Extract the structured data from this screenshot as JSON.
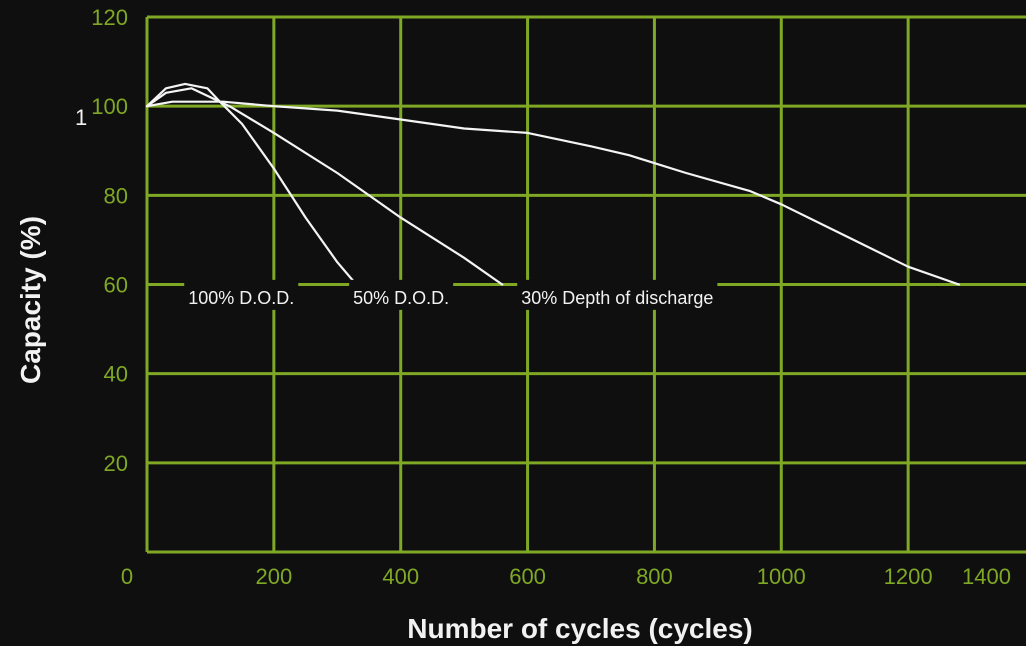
{
  "chart_data": {
    "type": "line",
    "title": "",
    "xlabel": "Number of cycles (cycles)",
    "ylabel": "Capacity (%)",
    "xlim": [
      0,
      1400
    ],
    "ylim": [
      0,
      120
    ],
    "x_ticks": [
      "0",
      "200",
      "400",
      "600",
      "800",
      "1000",
      "1200",
      "1400"
    ],
    "y_ticks": [
      "20",
      "40",
      "60",
      "80",
      "100",
      "120"
    ],
    "grid": true,
    "colors": {
      "background": "#0f0f0f",
      "grid": "#7fa824",
      "tick_labels": "#7fa824",
      "series": "#f4f4f4",
      "text": "#f2f2f2"
    },
    "stray_glyph": "1",
    "series": [
      {
        "label": "100% D.O.D.",
        "points": [
          [
            0,
            100
          ],
          [
            30,
            104
          ],
          [
            60,
            105
          ],
          [
            95,
            104
          ],
          [
            115,
            101
          ],
          [
            150,
            96
          ],
          [
            200,
            86
          ],
          [
            250,
            75
          ],
          [
            300,
            65
          ],
          [
            330,
            60
          ]
        ]
      },
      {
        "label": "50% D.O.D.",
        "points": [
          [
            0,
            100
          ],
          [
            30,
            103
          ],
          [
            70,
            104
          ],
          [
            100,
            102
          ],
          [
            130,
            100
          ],
          [
            200,
            94
          ],
          [
            300,
            85
          ],
          [
            400,
            75
          ],
          [
            500,
            66
          ],
          [
            560,
            60
          ]
        ]
      },
      {
        "label": "30% Depth of discharge",
        "points": [
          [
            0,
            100
          ],
          [
            40,
            101
          ],
          [
            80,
            101
          ],
          [
            120,
            101
          ],
          [
            200,
            100
          ],
          [
            300,
            99
          ],
          [
            400,
            97
          ],
          [
            500,
            95
          ],
          [
            600,
            94
          ],
          [
            700,
            91
          ],
          [
            760,
            89
          ],
          [
            850,
            85
          ],
          [
            950,
            81
          ],
          [
            1000,
            78
          ],
          [
            1100,
            71
          ],
          [
            1200,
            64
          ],
          [
            1280,
            60
          ]
        ]
      }
    ],
    "series_curve_labels": [
      {
        "text": "100% D.O.D.",
        "x": 65,
        "y": 57
      },
      {
        "text": "50% D.O.D.",
        "x": 325,
        "y": 57
      },
      {
        "text": "30% Depth of discharge",
        "x": 590,
        "y": 57
      }
    ]
  }
}
